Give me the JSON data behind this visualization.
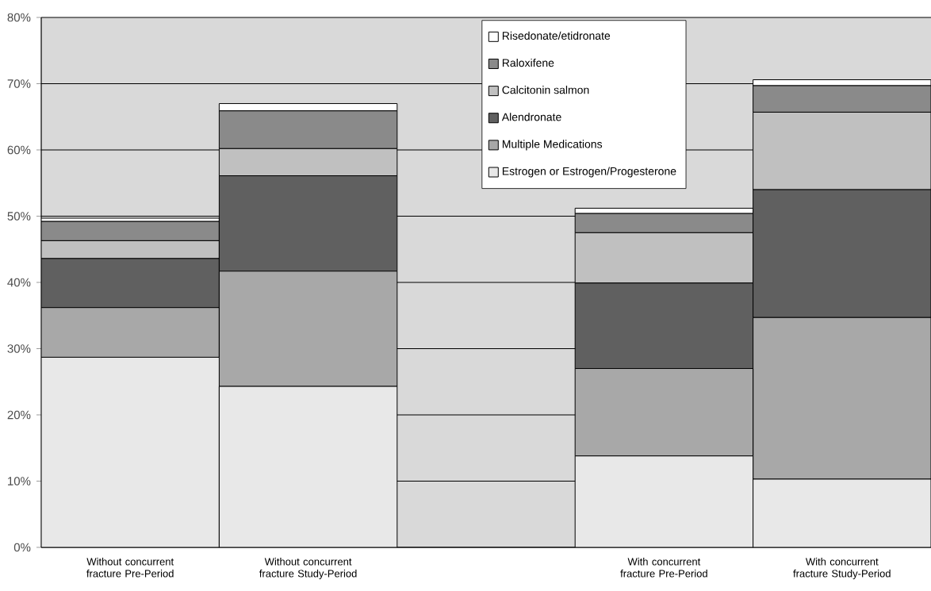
{
  "chart_data": {
    "type": "bar",
    "stacked": true,
    "grid": "y",
    "legend": "top",
    "categories": [
      "Without concurrent fracture Pre-Period",
      "Without concurrent fracture Study-Period",
      null,
      "With concurrent fracture Pre-Period",
      "With concurrent fracture Study-Period"
    ],
    "ylim": [
      0,
      80
    ],
    "yticks": [
      {
        "value": 0,
        "label": "0%"
      },
      {
        "value": 10,
        "label": "10%"
      },
      {
        "value": 20,
        "label": "20%"
      },
      {
        "value": 30,
        "label": "30%"
      },
      {
        "value": 40,
        "label": "40%"
      },
      {
        "value": 50,
        "label": "50%"
      },
      {
        "value": 60,
        "label": "60%"
      },
      {
        "value": 70,
        "label": "70%"
      },
      {
        "value": 80,
        "label": "80%"
      }
    ],
    "series": [
      {
        "name": "Estrogen or Estrogen/Progesterone",
        "color": "#e8e8e8",
        "values": [
          28.7,
          24.3,
          null,
          13.8,
          10.3
        ]
      },
      {
        "name": "Multiple Medications",
        "color": "#a8a8a8",
        "values": [
          7.5,
          17.4,
          null,
          13.2,
          24.4
        ]
      },
      {
        "name": "Alendronate",
        "color": "#606060",
        "values": [
          7.4,
          14.4,
          null,
          12.9,
          19.3
        ]
      },
      {
        "name": "Calcitonin salmon",
        "color": "#c0c0c0",
        "values": [
          2.7,
          4.1,
          null,
          7.6,
          11.7
        ]
      },
      {
        "name": "Raloxifene",
        "color": "#8a8a8a",
        "values": [
          2.9,
          5.7,
          null,
          2.9,
          4.0
        ]
      },
      {
        "name": "Risedonate/etidronate",
        "color": "#ffffff",
        "values": [
          0.5,
          1.1,
          null,
          0.8,
          0.9
        ]
      }
    ]
  }
}
